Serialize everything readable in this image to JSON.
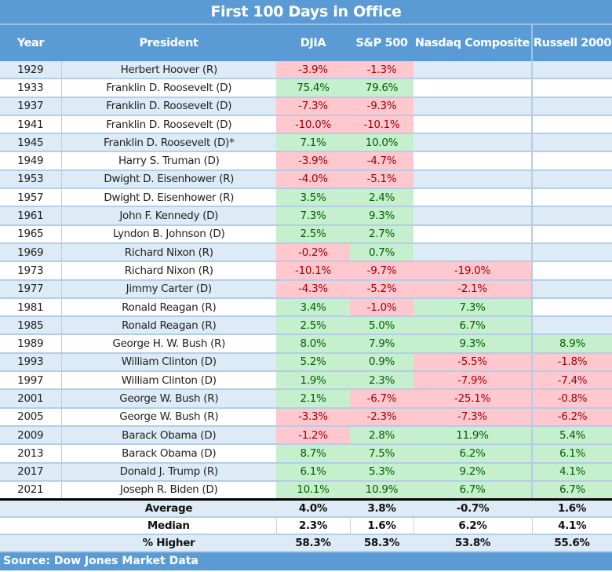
{
  "title": "First 100 Days in Office",
  "source": "Source: Dow Jones Market Data",
  "colors": {
    "header": "#5b9bd5",
    "row_alt": "#ddebf7",
    "negative_bg": "#ffc7ce",
    "negative_text": "#9c0006",
    "positive_bg": "#c6efce",
    "positive_text": "#006100"
  },
  "chart_data": {
    "type": "table",
    "title": "First 100 Days in Office",
    "columns": [
      "Year",
      "President",
      "DJIA",
      "S&P 500",
      "Nasdaq Composite",
      "Russell 2000"
    ],
    "rows": [
      [
        "1929",
        "Herbert Hoover (R)",
        "-3.9%",
        "-1.3%",
        null,
        null
      ],
      [
        "1933",
        "Franklin D. Roosevelt (D)",
        "75.4%",
        "79.6%",
        null,
        null
      ],
      [
        "1937",
        "Franklin D. Roosevelt (D)",
        "-7.3%",
        "-9.3%",
        null,
        null
      ],
      [
        "1941",
        "Franklin D. Roosevelt (D)",
        "-10.0%",
        "-10.1%",
        null,
        null
      ],
      [
        "1945",
        "Franklin D. Roosevelt (D)*",
        "7.1%",
        "10.0%",
        null,
        null
      ],
      [
        "1949",
        "Harry S. Truman (D)",
        "-3.9%",
        "-4.7%",
        null,
        null
      ],
      [
        "1953",
        "Dwight D. Eisenhower (R)",
        "-4.0%",
        "-5.1%",
        null,
        null
      ],
      [
        "1957",
        "Dwight D. Eisenhower (R)",
        "3.5%",
        "2.4%",
        null,
        null
      ],
      [
        "1961",
        "John F. Kennedy (D)",
        "7.3%",
        "9.3%",
        null,
        null
      ],
      [
        "1965",
        "Lyndon B. Johnson (D)",
        "2.5%",
        "2.7%",
        null,
        null
      ],
      [
        "1969",
        "Richard Nixon (R)",
        "-0.2%",
        "0.7%",
        null,
        null
      ],
      [
        "1973",
        "Richard Nixon (R)",
        "-10.1%",
        "-9.7%",
        "-19.0%",
        null
      ],
      [
        "1977",
        "Jimmy Carter (D)",
        "-4.3%",
        "-5.2%",
        "-2.1%",
        null
      ],
      [
        "1981",
        "Ronald Reagan (R)",
        "3.4%",
        "-1.0%",
        "7.3%",
        null
      ],
      [
        "1985",
        "Ronald Reagan (R)",
        "2.5%",
        "5.0%",
        "6.7%",
        null
      ],
      [
        "1989",
        "George H. W. Bush (R)",
        "8.0%",
        "7.9%",
        "9.3%",
        "8.9%"
      ],
      [
        "1993",
        "William Clinton (D)",
        "5.2%",
        "0.9%",
        "-5.5%",
        "-1.8%"
      ],
      [
        "1997",
        "William Clinton (D)",
        "1.9%",
        "2.3%",
        "-7.9%",
        "-7.4%"
      ],
      [
        "2001",
        "George W. Bush (R)",
        "2.1%",
        "-6.7%",
        "-25.1%",
        "-0.8%"
      ],
      [
        "2005",
        "George W. Bush (R)",
        "-3.3%",
        "-2.3%",
        "-7.3%",
        "-6.2%"
      ],
      [
        "2009",
        "Barack Obama (D)",
        "-1.2%",
        "2.8%",
        "11.9%",
        "5.4%"
      ],
      [
        "2013",
        "Barack Obama (D)",
        "8.7%",
        "7.5%",
        "6.2%",
        "6.1%"
      ],
      [
        "2017",
        "Donald J. Trump (R)",
        "6.1%",
        "5.3%",
        "9.2%",
        "4.1%"
      ],
      [
        "2021",
        "Joseph R. Biden (D)",
        "10.1%",
        "10.9%",
        "6.7%",
        "6.7%"
      ]
    ],
    "summary": [
      [
        "Average",
        "4.0%",
        "3.8%",
        "-0.7%",
        "1.6%"
      ],
      [
        "Median",
        "2.3%",
        "1.6%",
        "6.2%",
        "4.1%"
      ],
      [
        "% Higher",
        "58.3%",
        "58.3%",
        "53.8%",
        "55.6%"
      ]
    ]
  }
}
